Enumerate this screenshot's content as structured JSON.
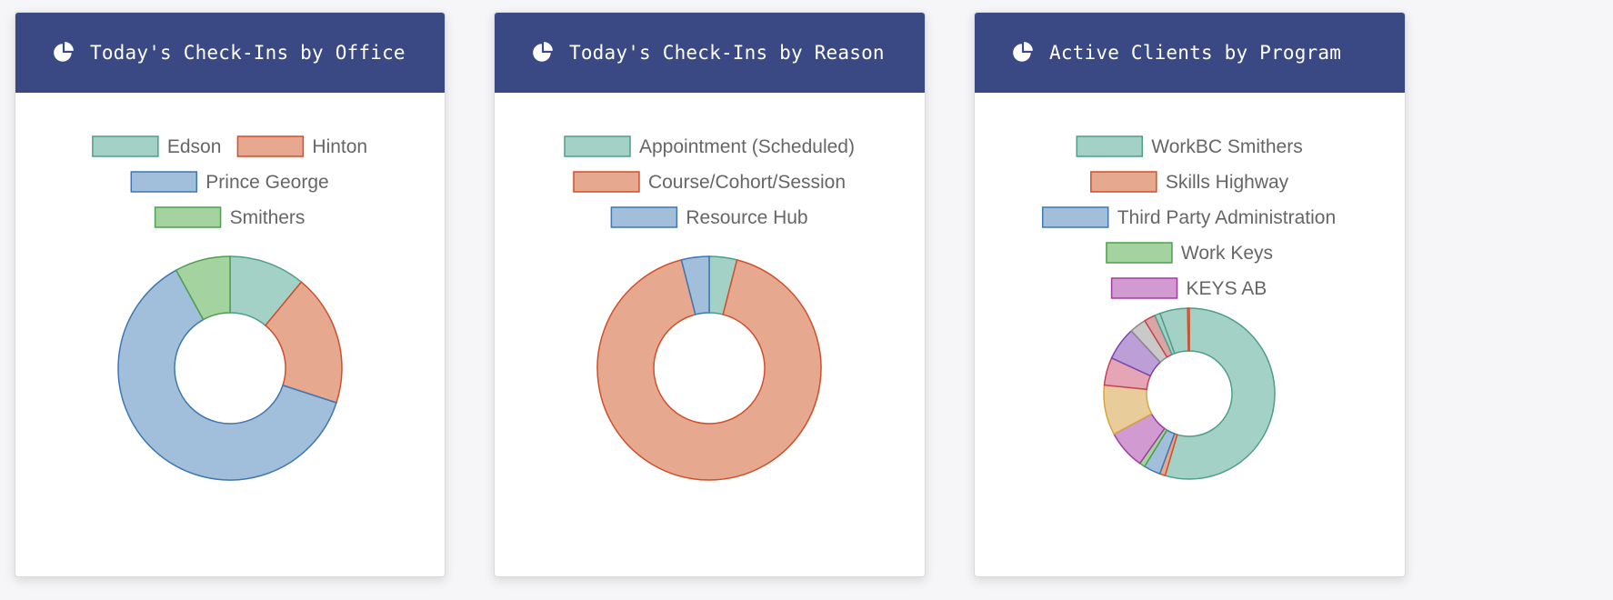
{
  "theme": {
    "header_bg": "#3a4984",
    "legend_text": "#666666",
    "card_bg": "#ffffff"
  },
  "cards": [
    {
      "title": "Today's Check-Ins by Office",
      "icon": "pie-chart-icon"
    },
    {
      "title": "Today's Check-Ins by Reason",
      "icon": "pie-chart-icon"
    },
    {
      "title": "Active Clients by Program",
      "icon": "pie-chart-icon"
    }
  ],
  "chart_data": [
    {
      "type": "doughnut",
      "legend_position": "top",
      "series": [
        {
          "name": "Edson",
          "value": 11,
          "fill": "#a3d1c6",
          "stroke": "#4e9e8a"
        },
        {
          "name": "Hinton",
          "value": 19,
          "fill": "#e6a88f",
          "stroke": "#d14f2a"
        },
        {
          "name": "Prince George",
          "value": 62,
          "fill": "#a1bfdb",
          "stroke": "#3f77b0"
        },
        {
          "name": "Smithers",
          "value": 8,
          "fill": "#a5d3a0",
          "stroke": "#4f9f4f"
        }
      ]
    },
    {
      "type": "doughnut",
      "legend_position": "top",
      "series": [
        {
          "name": "Appointment (Scheduled)",
          "value": 4,
          "fill": "#a3d1c6",
          "stroke": "#4e9e8a"
        },
        {
          "name": "Course/Cohort/Session",
          "value": 92,
          "fill": "#e6a88f",
          "stroke": "#d14f2a"
        },
        {
          "name": "Resource Hub",
          "value": 4,
          "fill": "#a1bfdb",
          "stroke": "#3f77b0"
        }
      ]
    },
    {
      "type": "doughnut",
      "legend_position": "top",
      "series": [
        {
          "name": "WorkBC Smithers",
          "value": 52,
          "fill": "#a3d1c6",
          "stroke": "#4e9e8a"
        },
        {
          "name": "Skills Highway",
          "value": 1,
          "fill": "#e6a88f",
          "stroke": "#d14f2a"
        },
        {
          "name": "Third Party Administration",
          "value": 3,
          "fill": "#a1bfdb",
          "stroke": "#3f77b0"
        },
        {
          "name": "Work Keys",
          "value": 1,
          "fill": "#a5d3a0",
          "stroke": "#4f9f4f"
        },
        {
          "name": "KEYS AB",
          "value": 7,
          "fill": "#d19ad0",
          "stroke": "#a13da1"
        },
        {
          "name": "",
          "value": 9,
          "fill": "#e8cc9a",
          "stroke": "#d9a440"
        },
        {
          "name": "",
          "value": 5,
          "fill": "#e6a5b4",
          "stroke": "#c8405c"
        },
        {
          "name": "",
          "value": 6,
          "fill": "#bb9fd6",
          "stroke": "#7a45b5"
        },
        {
          "name": "",
          "value": 3,
          "fill": "#c9c9c9",
          "stroke": "#8a8a8a"
        },
        {
          "name": "",
          "value": 2,
          "fill": "#d9a5a5",
          "stroke": "#c24646"
        },
        {
          "name": "",
          "value": 1,
          "fill": "#a3d1c6",
          "stroke": "#4e9e8a"
        },
        {
          "name": "",
          "value": 5,
          "fill": "#a3d1c6",
          "stroke": "#4e9e8a"
        },
        {
          "name": "",
          "value": 0.3,
          "fill": "#e6a88f",
          "stroke": "#d14f2a"
        }
      ]
    }
  ]
}
